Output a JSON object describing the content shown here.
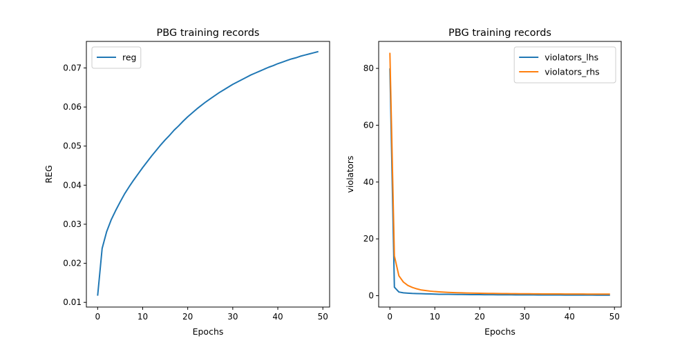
{
  "figure": {
    "background": "#ffffff"
  },
  "chart_data": [
    {
      "type": "line",
      "title": "PBG training records",
      "xlabel": "Epochs",
      "ylabel": "REG",
      "xlim": [
        -2.5,
        51.5
      ],
      "ylim": [
        0.0088,
        0.0768
      ],
      "xticks": [
        0,
        10,
        20,
        30,
        40,
        50
      ],
      "xtick_labels": [
        "0",
        "10",
        "20",
        "30",
        "40",
        "50"
      ],
      "yticks": [
        0.01,
        0.02,
        0.03,
        0.04,
        0.05,
        0.06,
        0.07
      ],
      "ytick_labels": [
        "0.01",
        "0.02",
        "0.03",
        "0.04",
        "0.05",
        "0.06",
        "0.07"
      ],
      "grid": false,
      "legend": "upper left",
      "x": [
        0,
        1,
        2,
        3,
        4,
        5,
        6,
        7,
        8,
        9,
        10,
        11,
        12,
        13,
        14,
        15,
        16,
        17,
        18,
        19,
        20,
        21,
        22,
        23,
        24,
        25,
        26,
        27,
        28,
        29,
        30,
        31,
        32,
        33,
        34,
        35,
        36,
        37,
        38,
        39,
        40,
        41,
        42,
        43,
        44,
        45,
        46,
        47,
        48,
        49
      ],
      "series": [
        {
          "name": "reg",
          "color": "#1f77b4",
          "values": [
            0.0117,
            0.0238,
            0.0281,
            0.0311,
            0.0335,
            0.0357,
            0.0378,
            0.0396,
            0.0413,
            0.0429,
            0.0445,
            0.046,
            0.0475,
            0.0489,
            0.0503,
            0.0516,
            0.0528,
            0.0541,
            0.0552,
            0.0564,
            0.0575,
            0.0585,
            0.0595,
            0.0604,
            0.0613,
            0.0621,
            0.0629,
            0.0637,
            0.0644,
            0.0651,
            0.0658,
            0.0664,
            0.067,
            0.0676,
            0.0682,
            0.0687,
            0.0692,
            0.0697,
            0.0702,
            0.0706,
            0.0711,
            0.0715,
            0.0719,
            0.0723,
            0.0726,
            0.073,
            0.0733,
            0.0736,
            0.0739,
            0.0742
          ]
        }
      ]
    },
    {
      "type": "line",
      "title": "PBG training records",
      "xlabel": "Epochs",
      "ylabel": "violators",
      "xlim": [
        -2.5,
        51.5
      ],
      "ylim": [
        -4.0,
        89.5
      ],
      "xticks": [
        0,
        10,
        20,
        30,
        40,
        50
      ],
      "xtick_labels": [
        "0",
        "10",
        "20",
        "30",
        "40",
        "50"
      ],
      "yticks": [
        0,
        20,
        40,
        60,
        80
      ],
      "ytick_labels": [
        "0",
        "20",
        "40",
        "60",
        "80"
      ],
      "grid": false,
      "legend": "upper right",
      "x": [
        0,
        1,
        2,
        3,
        4,
        5,
        6,
        7,
        8,
        9,
        10,
        11,
        12,
        13,
        14,
        15,
        16,
        17,
        18,
        19,
        20,
        21,
        22,
        23,
        24,
        25,
        26,
        27,
        28,
        29,
        30,
        31,
        32,
        33,
        34,
        35,
        36,
        37,
        38,
        39,
        40,
        41,
        42,
        43,
        44,
        45,
        46,
        47,
        48,
        49
      ],
      "series": [
        {
          "name": "violators_lhs",
          "color": "#1f77b4",
          "values": [
            80.0,
            3.0,
            1.3,
            1.0,
            0.9,
            0.8,
            0.75,
            0.7,
            0.65,
            0.6,
            0.55,
            0.5,
            0.5,
            0.48,
            0.45,
            0.43,
            0.42,
            0.4,
            0.38,
            0.37,
            0.36,
            0.35,
            0.34,
            0.33,
            0.32,
            0.31,
            0.3,
            0.3,
            0.29,
            0.28,
            0.28,
            0.27,
            0.27,
            0.26,
            0.26,
            0.25,
            0.25,
            0.24,
            0.24,
            0.23,
            0.23,
            0.22,
            0.22,
            0.22,
            0.21,
            0.21,
            0.2,
            0.2,
            0.2,
            0.2
          ]
        },
        {
          "name": "violators_rhs",
          "color": "#ff7f0e",
          "values": [
            85.5,
            14.0,
            7.0,
            4.8,
            3.6,
            2.9,
            2.4,
            2.0,
            1.8,
            1.6,
            1.45,
            1.35,
            1.25,
            1.17,
            1.1,
            1.05,
            1.0,
            0.96,
            0.92,
            0.89,
            0.86,
            0.83,
            0.81,
            0.79,
            0.77,
            0.75,
            0.73,
            0.71,
            0.7,
            0.69,
            0.67,
            0.66,
            0.65,
            0.64,
            0.63,
            0.62,
            0.61,
            0.6,
            0.6,
            0.59,
            0.58,
            0.58,
            0.57,
            0.57,
            0.56,
            0.56,
            0.55,
            0.55,
            0.55,
            0.54
          ]
        }
      ]
    }
  ]
}
